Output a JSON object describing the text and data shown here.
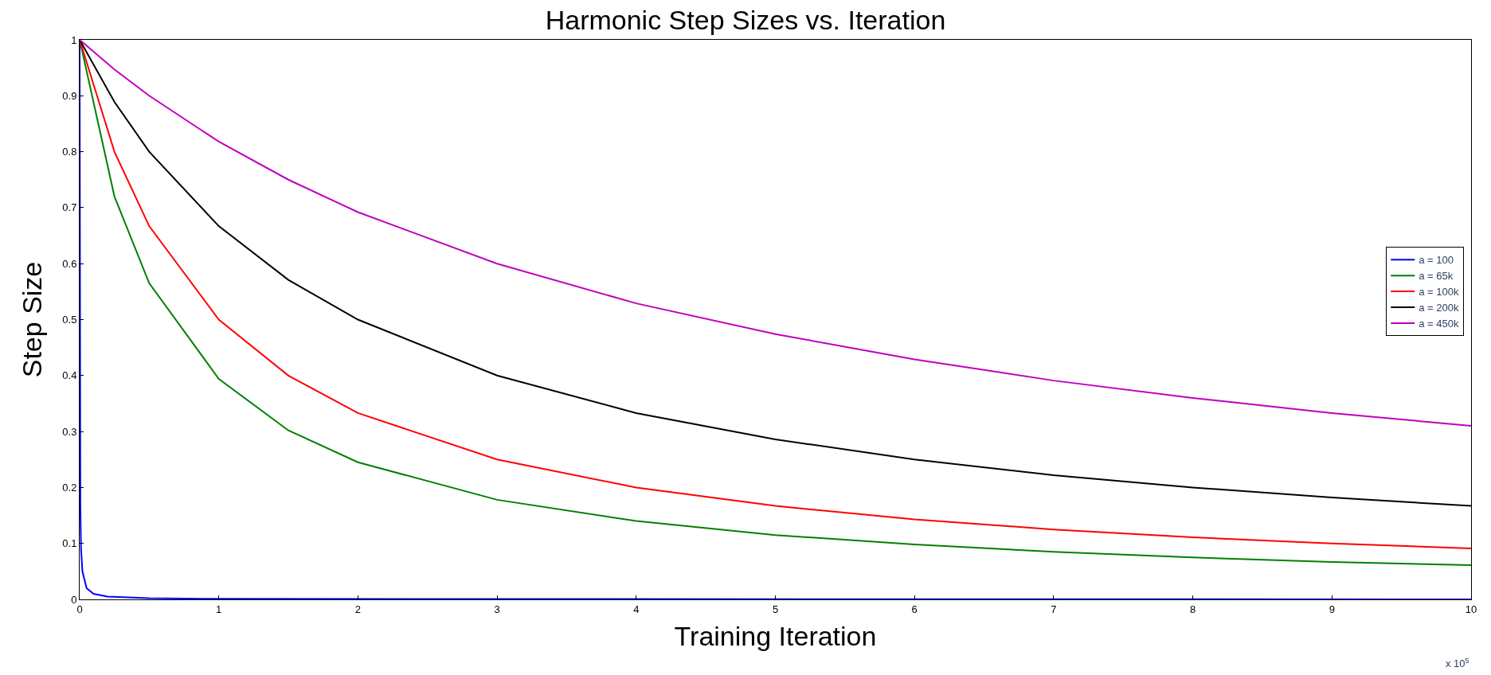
{
  "chart_data": {
    "type": "line",
    "title": "Harmonic Step Sizes vs. Iteration",
    "xlabel": "Training Iteration",
    "ylabel": "Step Size",
    "annotations": [
      "x 10$^{5}$"
    ],
    "xlim": [
      0,
      10
    ],
    "xticks": [
      0,
      1,
      2,
      3,
      4,
      5,
      6,
      7,
      8,
      9,
      10
    ],
    "ylim": [
      0,
      1
    ],
    "yticks": [
      0,
      0.1,
      0.2,
      0.3,
      0.4,
      0.5,
      0.6,
      0.7,
      0.8,
      0.9,
      1
    ],
    "legend": "right",
    "marker": "none",
    "line_style": "solid",
    "series": [
      {
        "name": "a = 100",
        "color": "#0000ff",
        "x": [
          0,
          0.005,
          0.01,
          0.02,
          0.05,
          0.1,
          0.2,
          0.5,
          1,
          10
        ],
        "values": [
          1,
          0.17,
          0.09,
          0.05,
          0.02,
          0.01,
          0.005,
          0.002,
          0.001,
          0
        ]
      },
      {
        "name": "a = 65k",
        "color": "#008000",
        "x": [
          0,
          0.25,
          0.5,
          1,
          1.5,
          2,
          3,
          4,
          5,
          6,
          7,
          8,
          9,
          10
        ],
        "values": [
          1,
          0.72,
          0.565,
          0.394,
          0.302,
          0.245,
          0.178,
          0.14,
          0.115,
          0.098,
          0.085,
          0.075,
          0.067,
          0.061
        ]
      },
      {
        "name": "a = 100k",
        "color": "#ff0000",
        "x": [
          0,
          0.25,
          0.5,
          1,
          1.5,
          2,
          3,
          4,
          5,
          6,
          7,
          8,
          9,
          10
        ],
        "values": [
          1,
          0.8,
          0.667,
          0.5,
          0.4,
          0.333,
          0.25,
          0.2,
          0.167,
          0.143,
          0.125,
          0.111,
          0.1,
          0.091
        ]
      },
      {
        "name": "a = 200k",
        "color": "#000000",
        "x": [
          0,
          0.25,
          0.5,
          1,
          1.5,
          2,
          3,
          4,
          5,
          6,
          7,
          8,
          9,
          10
        ],
        "values": [
          1,
          0.889,
          0.8,
          0.667,
          0.571,
          0.5,
          0.4,
          0.333,
          0.286,
          0.25,
          0.222,
          0.2,
          0.182,
          0.167
        ]
      },
      {
        "name": "a = 450k",
        "color": "#bf00bf",
        "x": [
          0,
          0.25,
          0.5,
          1,
          1.5,
          2,
          3,
          4,
          5,
          6,
          7,
          8,
          9,
          10
        ],
        "values": [
          1,
          0.947,
          0.9,
          0.818,
          0.75,
          0.692,
          0.6,
          0.529,
          0.474,
          0.429,
          0.391,
          0.36,
          0.333,
          0.31
        ]
      }
    ]
  }
}
